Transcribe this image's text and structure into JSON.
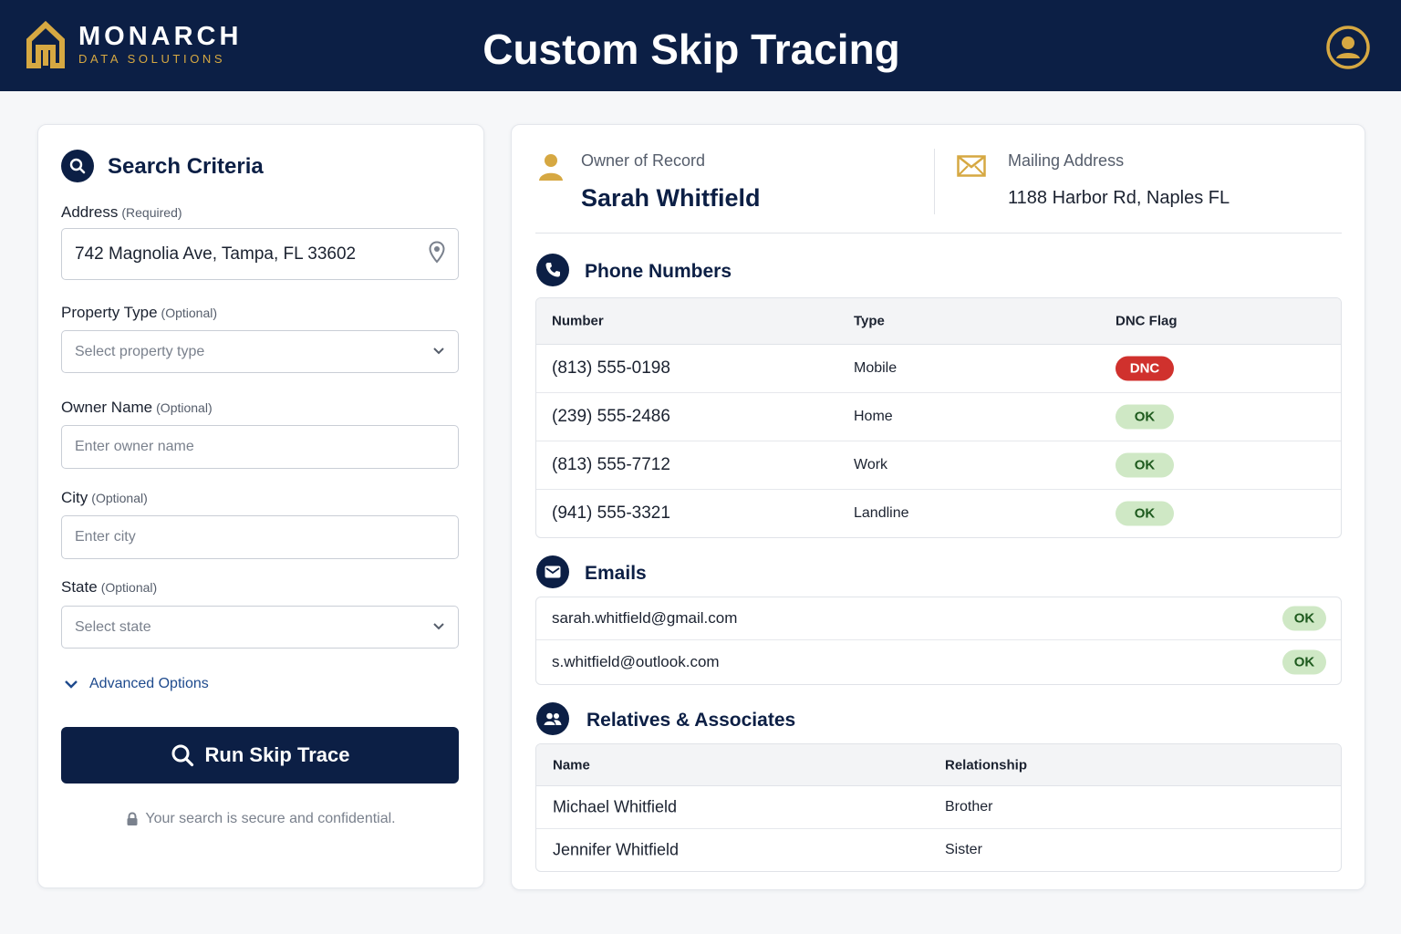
{
  "brand": {
    "name": "MONARCH",
    "tagline": "DATA SOLUTIONS",
    "gold": "#d6a842",
    "navy": "#0c1f45"
  },
  "header": {
    "title": "Custom Skip Tracing"
  },
  "search": {
    "title": "Search Criteria",
    "address": {
      "label": "Address",
      "note": "(Required)",
      "value": "742 Magnolia Ave, Tampa, FL 33602"
    },
    "property_type": {
      "label": "Property Type",
      "note": "(Optional)",
      "placeholder": "Select property type"
    },
    "owner_name": {
      "label": "Owner Name",
      "note": "(Optional)",
      "placeholder": "Enter owner name"
    },
    "city": {
      "label": "City",
      "note": "(Optional)",
      "placeholder": "Enter city"
    },
    "state": {
      "label": "State",
      "note": "(Optional)",
      "placeholder": "Select state"
    },
    "advanced_label": "Advanced Options",
    "run_label": "Run Skip Trace",
    "secure_note": "Your search is secure and confidential."
  },
  "results": {
    "owner": {
      "label": "Owner of Record",
      "name": "Sarah Whitfield"
    },
    "mailing": {
      "label": "Mailing Address",
      "value": "1188 Harbor Rd, Naples FL"
    },
    "phones": {
      "title": "Phone Numbers",
      "headers": [
        "Number",
        "Type",
        "DNC Flag"
      ],
      "rows": [
        {
          "number": "(813) 555-0198",
          "type": "Mobile",
          "flag": "DNC"
        },
        {
          "number": "(239) 555-2486",
          "type": "Home",
          "flag": "OK"
        },
        {
          "number": "(813) 555-7712",
          "type": "Work",
          "flag": "OK"
        },
        {
          "number": "(941) 555-3321",
          "type": "Landline",
          "flag": "OK"
        }
      ]
    },
    "emails": {
      "title": "Emails",
      "rows": [
        {
          "email": "sarah.whitfield@gmail.com",
          "status": "OK"
        },
        {
          "email": "s.whitfield@outlook.com",
          "status": "OK"
        }
      ]
    },
    "relatives": {
      "title": "Relatives & Associates",
      "headers": [
        "Name",
        "Relationship"
      ],
      "rows": [
        {
          "name": "Michael Whitfield",
          "relationship": "Brother"
        },
        {
          "name": "Jennifer Whitfield",
          "relationship": "Sister"
        }
      ]
    }
  }
}
